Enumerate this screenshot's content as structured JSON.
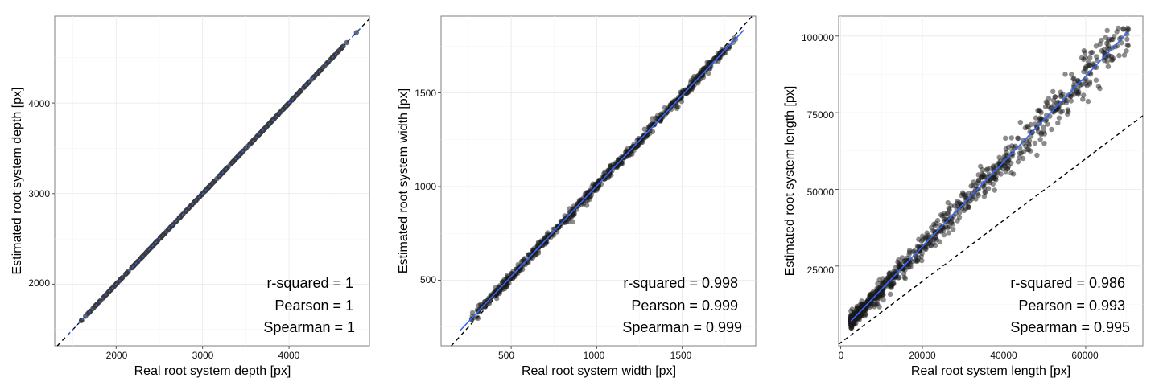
{
  "chart_data": [
    {
      "type": "scatter",
      "xlabel": "Real root system depth [px]",
      "ylabel": "Estimated root system depth [px]",
      "xlim": [
        1290,
        4930
      ],
      "ylim": [
        1320,
        4960
      ],
      "xticks": [
        2000,
        3000,
        4000
      ],
      "yticks": [
        2000,
        3000,
        4000
      ],
      "identity_line": true,
      "fit_line": {
        "x": [
          1450,
          4830
        ],
        "y": [
          1450,
          4830
        ],
        "color": "#3366ff"
      },
      "point_range": [
        1450,
        4830
      ],
      "n_points": 420,
      "stats": [
        "r-squared =  1",
        "Pearson =  1",
        "Spearman =  1"
      ],
      "grid": true,
      "legend": "none"
    },
    {
      "type": "scatter",
      "xlabel": "Real root system width [px]",
      "ylabel": "Estimated root system width [px]",
      "xlim": [
        90,
        1930
      ],
      "ylim": [
        150,
        1910
      ],
      "xticks": [
        500,
        1000,
        1500
      ],
      "yticks": [
        500,
        1000,
        1500
      ],
      "identity_line": true,
      "fit_line": {
        "x": [
          200,
          1860
        ],
        "y": [
          230,
          1835
        ],
        "color": "#3366ff"
      },
      "point_range": [
        200,
        1860
      ],
      "n_points": 650,
      "stats": [
        "r-squared =  0.998",
        "Pearson =  0.999",
        "Spearman =  0.999"
      ],
      "grid": true,
      "legend": "none"
    },
    {
      "type": "scatter",
      "xlabel": "Real root system length [px]",
      "ylabel": "Estimated root system length [px]",
      "xlim": [
        -500,
        74000
      ],
      "ylim": [
        -1000,
        106500
      ],
      "xticks": [
        0,
        20000,
        40000,
        60000
      ],
      "yticks": [
        25000,
        50000,
        75000,
        100000
      ],
      "identity_line": true,
      "fit_line": {
        "x": [
          2500,
          70500
        ],
        "y": [
          7000,
          101500
        ],
        "color": "#3366ff"
      },
      "point_range": [
        2500,
        70500
      ],
      "n_points": 900,
      "stats": [
        "r-squared =  0.986",
        "Pearson =  0.993",
        "Spearman =  0.995"
      ],
      "grid": true,
      "legend": "none"
    }
  ]
}
